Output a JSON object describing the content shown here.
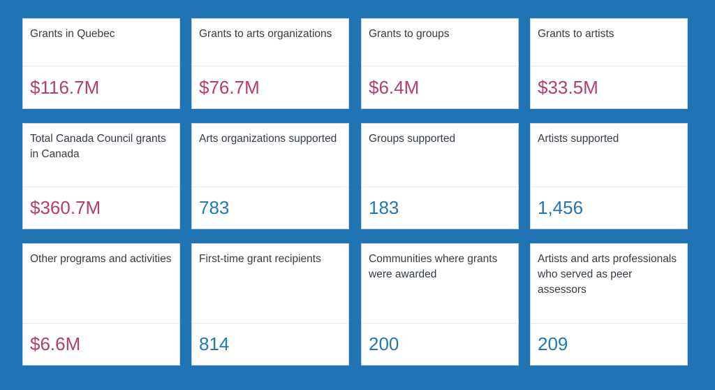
{
  "colors": {
    "background": "#2074b4",
    "amount": "#b23e73",
    "count": "#2277b5"
  },
  "stats": [
    {
      "label": "Grants in Quebec",
      "value": "$116.7M"
    },
    {
      "label": "Grants to arts organizations",
      "value": "$76.7M"
    },
    {
      "label": "Grants to groups",
      "value": "$6.4M"
    },
    {
      "label": "Grants to artists",
      "value": "$33.5M"
    },
    {
      "label": "Total Canada Council grants in Canada",
      "value": "$360.7M"
    },
    {
      "label": "Arts organizations supported",
      "value": "783"
    },
    {
      "label": "Groups supported",
      "value": "183"
    },
    {
      "label": "Artists supported",
      "value": "1,456"
    },
    {
      "label": "Other programs and activities",
      "value": "$6.6M"
    },
    {
      "label": "First-time grant recipients",
      "value": "814"
    },
    {
      "label": "Communities where grants were awarded",
      "value": "200"
    },
    {
      "label": "Artists and arts professionals who served as peer assessors",
      "value": "209"
    }
  ]
}
